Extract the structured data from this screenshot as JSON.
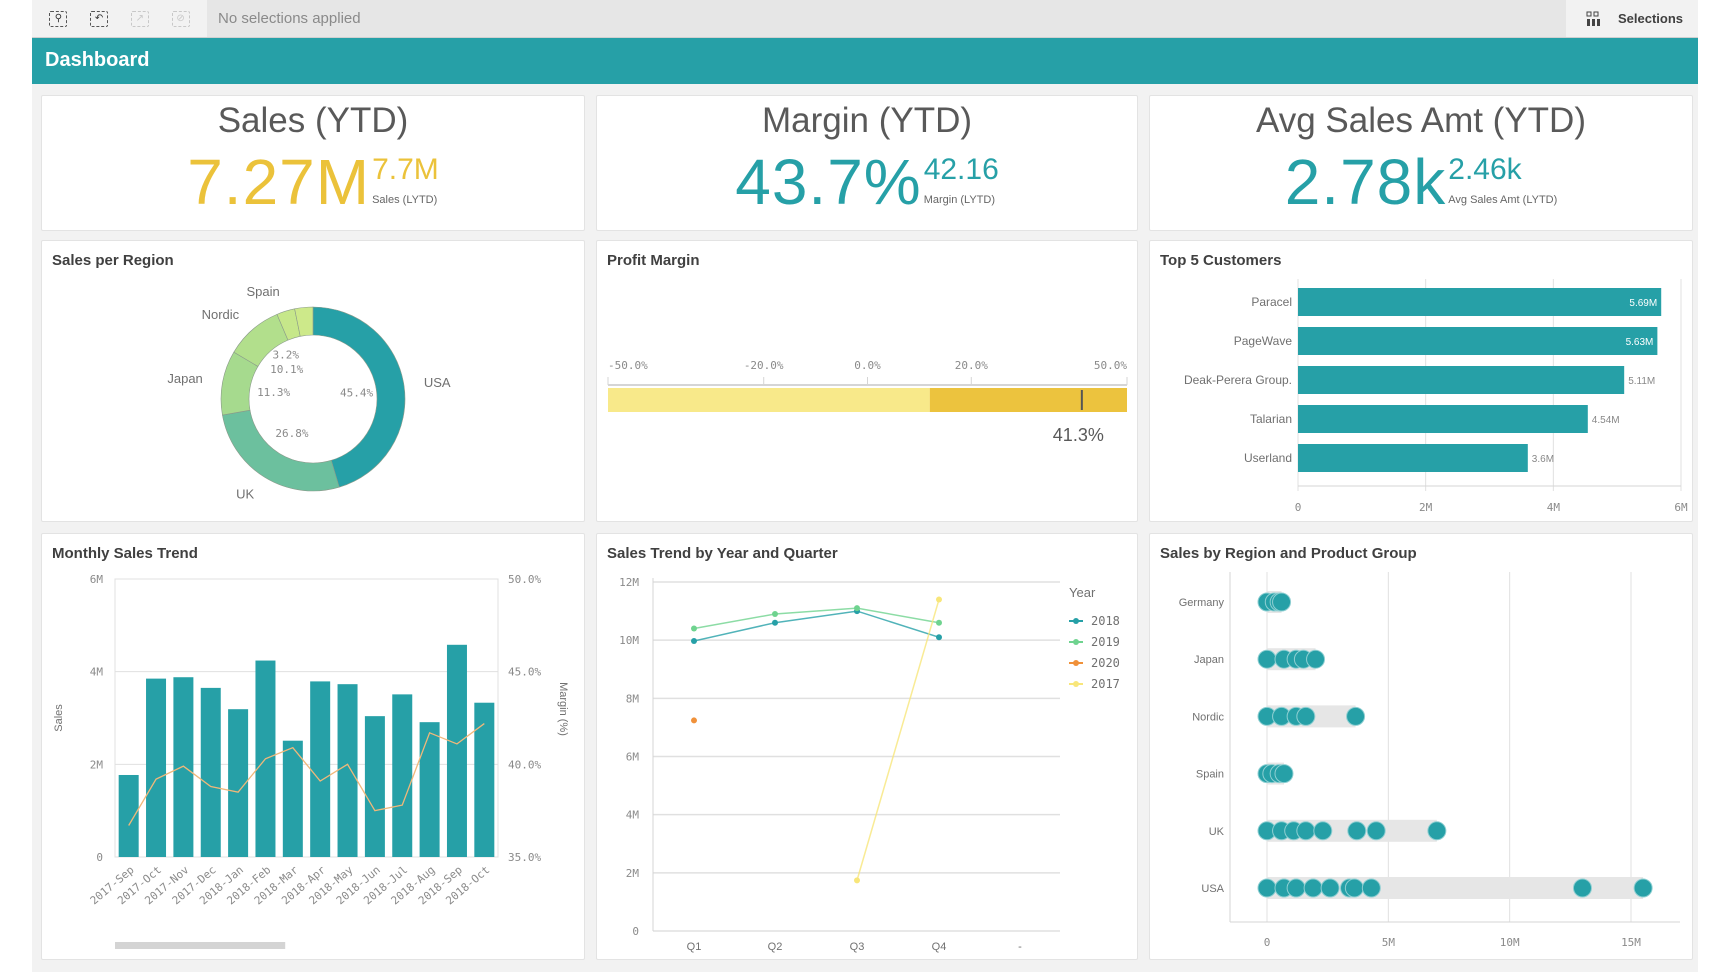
{
  "toolbar": {
    "icons": [
      "smart-search-icon",
      "step-back-icon",
      "step-forward-icon",
      "clear-all-icon"
    ],
    "status": "No selections applied",
    "selections_label": "Selections",
    "selections_icon": "grid-icon"
  },
  "header": {
    "title": "Dashboard"
  },
  "colors": {
    "teal": "#26a0a7",
    "yellow": "#ebc23a"
  },
  "kpis": [
    {
      "title": "Sales (YTD)",
      "value": "7.27M",
      "compare_value": "7.7M",
      "compare_label": "Sales (LYTD)",
      "color": "#ebc23a"
    },
    {
      "title": "Margin (YTD)",
      "value": "43.7%",
      "compare_value": "42.16",
      "compare_label": "Margin (LYTD)",
      "color": "#26a0a7"
    },
    {
      "title": "Avg Sales Amt (YTD)",
      "value": "2.78k",
      "compare_value": "2.46k",
      "compare_label": "Avg Sales Amt (LYTD)",
      "color": "#26a0a7"
    }
  ],
  "chart_data": [
    {
      "type": "pie",
      "title": "Sales per Region",
      "donut": true,
      "slices": [
        {
          "label": "USA",
          "value": 45.4,
          "pct_label": "45.4%",
          "color": "#26a0a7"
        },
        {
          "label": "UK",
          "value": 26.8,
          "pct_label": "26.8%",
          "color": "#6cc09e"
        },
        {
          "label": "Japan",
          "value": 11.3,
          "pct_label": "11.3%",
          "color": "#a6da8e"
        },
        {
          "label": "Nordic",
          "value": 10.1,
          "pct_label": "10.1%",
          "color": "#b2df8c"
        },
        {
          "label": "Spain",
          "value": 3.2,
          "pct_label": "3.2%",
          "color": "#c6e78a"
        },
        {
          "label": "",
          "value": 3.2,
          "pct_label": "",
          "color": "#cde98a"
        }
      ]
    },
    {
      "type": "bullet",
      "title": "Profit Margin",
      "xlim": [
        -50,
        50
      ],
      "ticks": [
        {
          "value": -50,
          "label": "-50.0%"
        },
        {
          "value": -20,
          "label": "-20.0%"
        },
        {
          "value": 0,
          "label": "0.0%"
        },
        {
          "value": 20,
          "label": "20.0%"
        },
        {
          "value": 50,
          "label": "50.0%"
        }
      ],
      "ranges": [
        {
          "from": -50,
          "to": 12,
          "color": "#f8e98a"
        },
        {
          "from": 12,
          "to": 50,
          "color": "#ecc33e"
        }
      ],
      "value": 41.3,
      "value_label": "41.3%"
    },
    {
      "type": "bar",
      "orientation": "horizontal",
      "title": "Top 5 Customers",
      "categories": [
        "Paracel",
        "PageWave",
        "Deak-Perera Group.",
        "Talarian",
        "Userland"
      ],
      "values": [
        5.69,
        5.63,
        5.11,
        4.54,
        3.6
      ],
      "data_labels": [
        "5.69M",
        "5.63M",
        "5.11M",
        "4.54M",
        "3.6M"
      ],
      "xlim": [
        0,
        6
      ],
      "ticks": [
        {
          "value": 0,
          "label": "0"
        },
        {
          "value": 2,
          "label": "2M"
        },
        {
          "value": 4,
          "label": "4M"
        },
        {
          "value": 6,
          "label": "6M"
        }
      ],
      "unit": "M",
      "color": "#26a0a7",
      "grid": true
    },
    {
      "type": "bar",
      "title": "Monthly Sales Trend",
      "categories": [
        "2017-Sep",
        "2017-Oct",
        "2017-Nov",
        "2017-Dec",
        "2018-Jan",
        "2018-Feb",
        "2018-Mar",
        "2018-Apr",
        "2018-May",
        "2018-Jun",
        "2018-Jul",
        "2018-Aug",
        "2018-Sep",
        "2018-Oct"
      ],
      "series": [
        {
          "name": "Sales",
          "kind": "bar",
          "axis": "left",
          "values": [
            1.77,
            3.85,
            3.88,
            3.65,
            3.19,
            4.24,
            2.51,
            3.79,
            3.73,
            3.04,
            3.51,
            2.91,
            4.58,
            3.33
          ],
          "color": "#26a0a7"
        },
        {
          "name": "Margin (%)",
          "kind": "line",
          "axis": "right",
          "values": [
            36.7,
            39.2,
            39.9,
            38.8,
            38.5,
            40.3,
            40.9,
            39.1,
            40.0,
            37.5,
            37.8,
            41.7,
            41.1,
            42.2
          ],
          "color": "#f0b87a"
        }
      ],
      "ylabel": "Sales",
      "ylabel_right": "Margin (%)",
      "ylim": [
        0,
        6
      ],
      "ylim_right": [
        35,
        50
      ],
      "yticks": [
        {
          "value": 0,
          "label": "0"
        },
        {
          "value": 2,
          "label": "2M"
        },
        {
          "value": 4,
          "label": "4M"
        },
        {
          "value": 6,
          "label": "6M"
        }
      ],
      "yticks_right": [
        {
          "value": 35,
          "label": "35.0%"
        },
        {
          "value": 40,
          "label": "40.0%"
        },
        {
          "value": 45,
          "label": "45.0%"
        },
        {
          "value": 50,
          "label": "50.0%"
        }
      ],
      "grid": true,
      "scrollbar_fraction": 0.4
    },
    {
      "type": "line",
      "title": "Sales Trend by Year and Quarter",
      "categories": [
        "Q1",
        "Q2",
        "Q3",
        "Q4",
        "-"
      ],
      "legend_title": "Year",
      "legend_position": "right",
      "series": [
        {
          "name": "2018",
          "values": [
            9.97,
            10.6,
            11.0,
            10.1,
            null
          ],
          "color": "#26a0a7"
        },
        {
          "name": "2019",
          "values": [
            10.4,
            10.9,
            11.1,
            10.6,
            null
          ],
          "color": "#6fd38f"
        },
        {
          "name": "2020",
          "values": [
            7.24,
            null,
            null,
            null,
            null
          ],
          "color": "#f0913a"
        },
        {
          "name": "2017",
          "values": [
            null,
            null,
            1.74,
            11.4,
            null
          ],
          "color": "#f8e67a"
        }
      ],
      "ylim": [
        0,
        12
      ],
      "yticks": [
        {
          "value": 0,
          "label": "0"
        },
        {
          "value": 2,
          "label": "2M"
        },
        {
          "value": 4,
          "label": "4M"
        },
        {
          "value": 6,
          "label": "6M"
        },
        {
          "value": 8,
          "label": "8M"
        },
        {
          "value": 10,
          "label": "10M"
        },
        {
          "value": 12,
          "label": "12M"
        }
      ],
      "grid": true
    },
    {
      "type": "scatter",
      "subtype": "distribution",
      "title": "Sales by Region and Product Group",
      "categories": [
        "Germany",
        "Japan",
        "Nordic",
        "Spain",
        "UK",
        "USA"
      ],
      "points": [
        [
          0,
          0.3,
          0.5,
          0.6
        ],
        [
          0,
          0.7,
          1.2,
          1.5,
          2.0
        ],
        [
          0,
          0.6,
          1.2,
          1.6,
          3.65
        ],
        [
          0,
          0.2,
          0.5,
          0.7
        ],
        [
          0,
          0.6,
          1.1,
          1.6,
          2.3,
          3.7,
          4.5,
          7.0
        ],
        [
          0,
          0.7,
          1.2,
          1.9,
          2.6,
          3.4,
          3.6,
          4.3,
          13.0,
          15.5
        ]
      ],
      "xlim": [
        0,
        16.5
      ],
      "ticks": [
        {
          "value": 0,
          "label": "0"
        },
        {
          "value": 5,
          "label": "5M"
        },
        {
          "value": 10,
          "label": "10M"
        },
        {
          "value": 15,
          "label": "15M"
        }
      ],
      "color": "#26a0a7",
      "grid": true
    }
  ]
}
